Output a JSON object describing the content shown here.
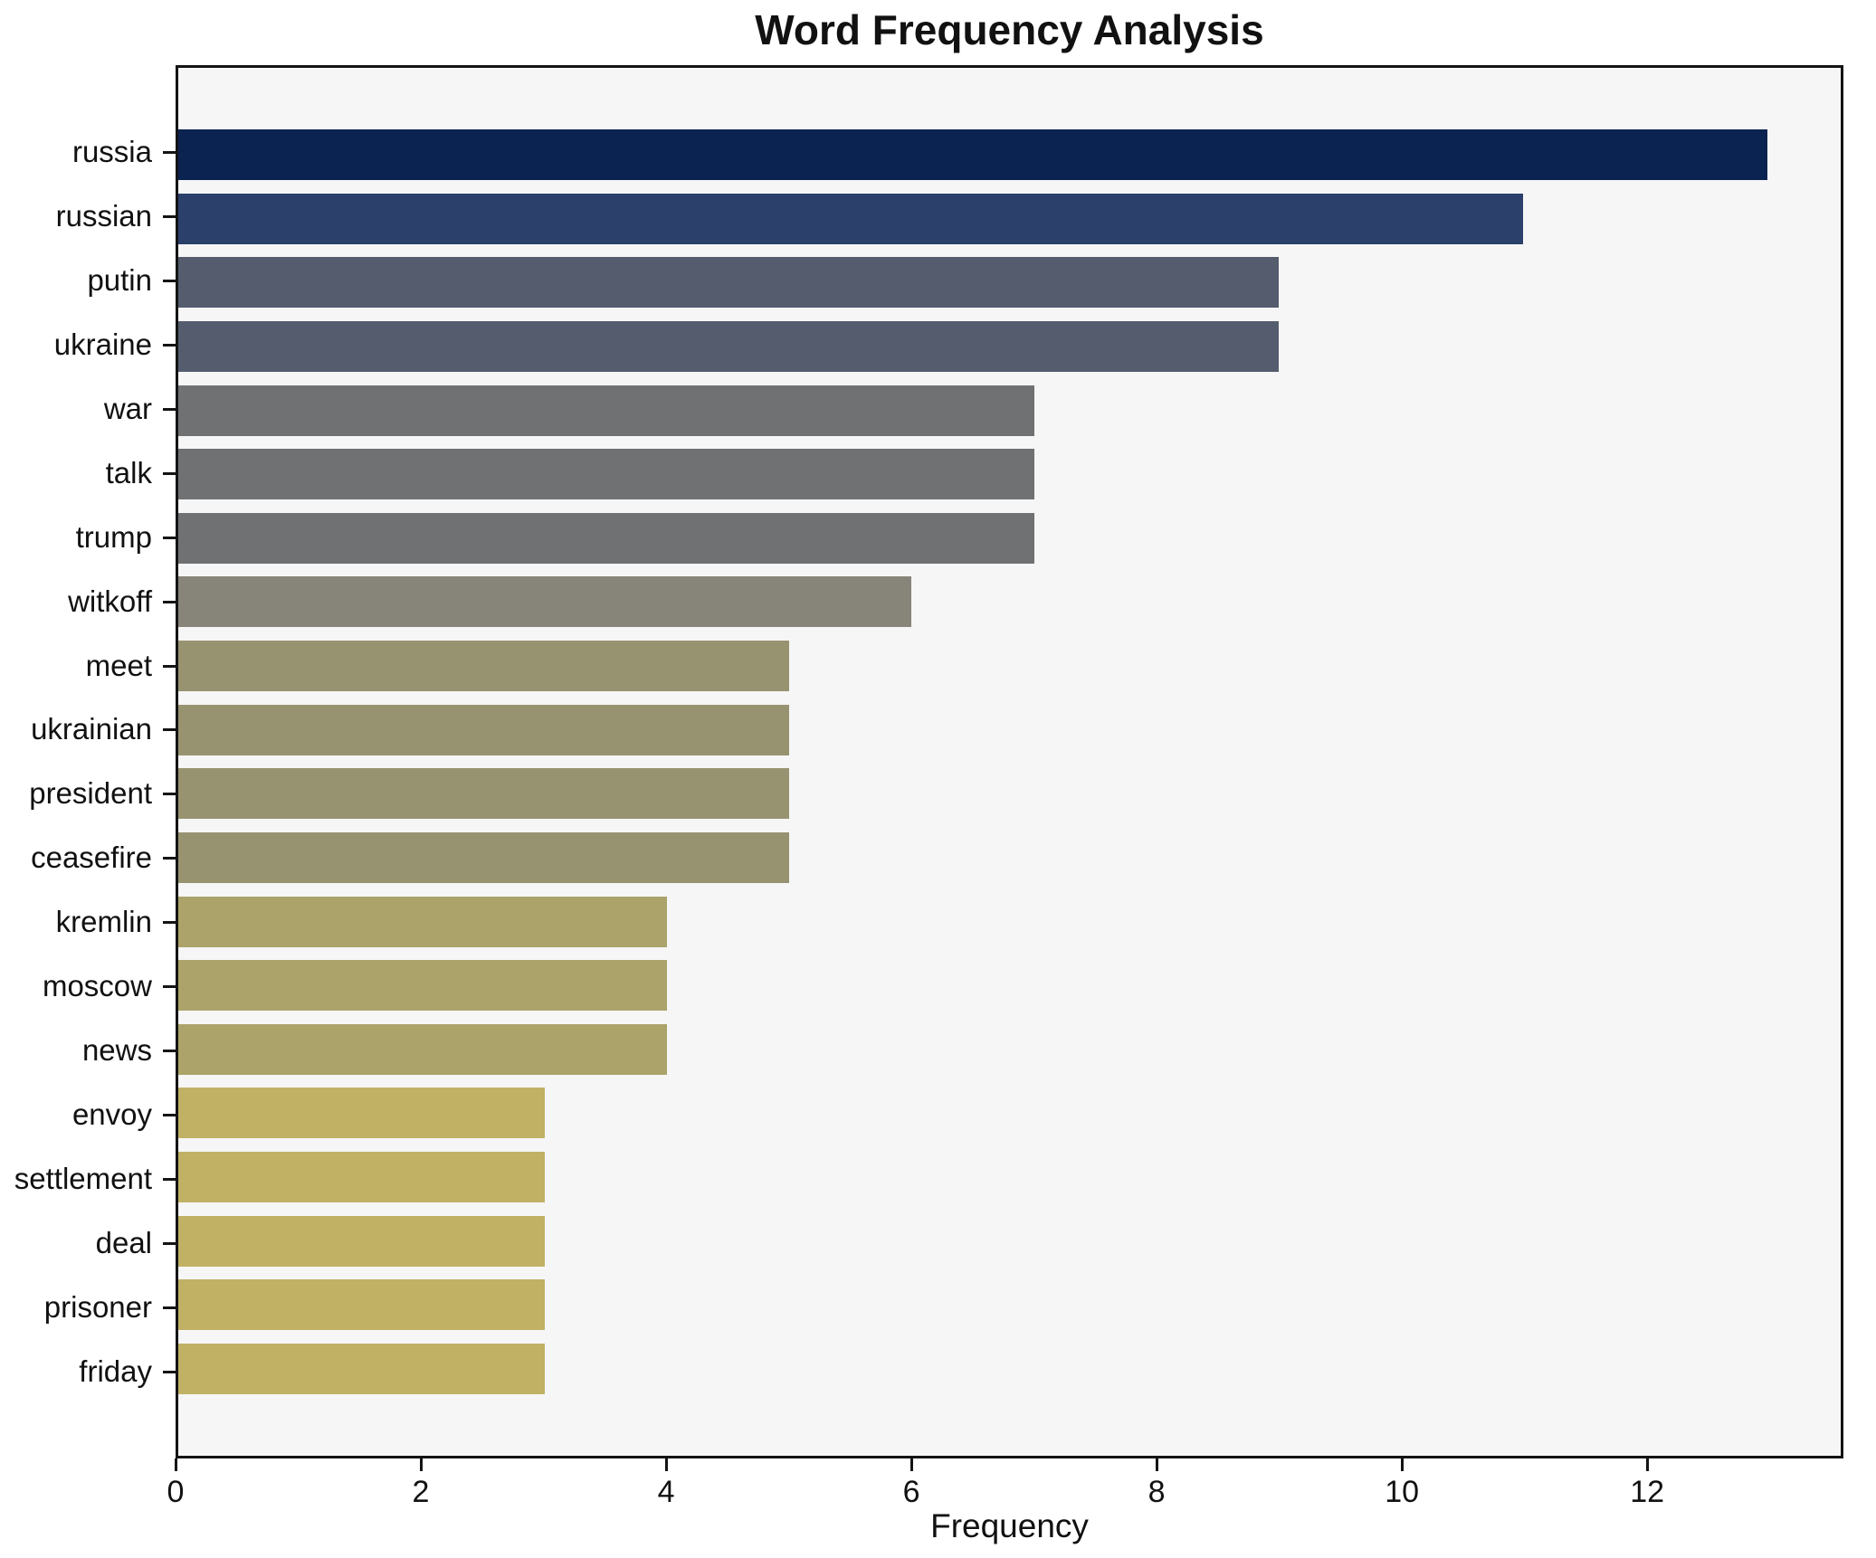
{
  "chart_data": {
    "type": "bar",
    "orientation": "horizontal",
    "title": "Word Frequency Analysis",
    "xlabel": "Frequency",
    "ylabel": "",
    "categories": [
      "russia",
      "russian",
      "putin",
      "ukraine",
      "war",
      "talk",
      "trump",
      "witkoff",
      "meet",
      "ukrainian",
      "president",
      "ceasefire",
      "kremlin",
      "moscow",
      "news",
      "envoy",
      "settlement",
      "deal",
      "prisoner",
      "friday"
    ],
    "values": [
      13,
      11,
      9,
      9,
      7,
      7,
      7,
      6,
      5,
      5,
      5,
      5,
      4,
      4,
      4,
      3,
      3,
      3,
      3,
      3
    ],
    "bar_colors": [
      "#0a2351",
      "#2b406b",
      "#545c6e",
      "#545c6e",
      "#707173",
      "#707173",
      "#707173",
      "#87847a",
      "#979371",
      "#979371",
      "#979371",
      "#979371",
      "#aca36a",
      "#aca36a",
      "#aca36a",
      "#c1b165",
      "#c1b165",
      "#c1b165",
      "#c1b165",
      "#c1b165"
    ],
    "xticks": [
      0,
      2,
      4,
      6,
      8,
      10,
      12
    ],
    "xlim": [
      0,
      13.6
    ],
    "grid": "off",
    "legend": "none",
    "plot_background": "#f6f6f6",
    "figure_background": "#ffffff",
    "bar_color_scheme": "cividis-reversed"
  }
}
